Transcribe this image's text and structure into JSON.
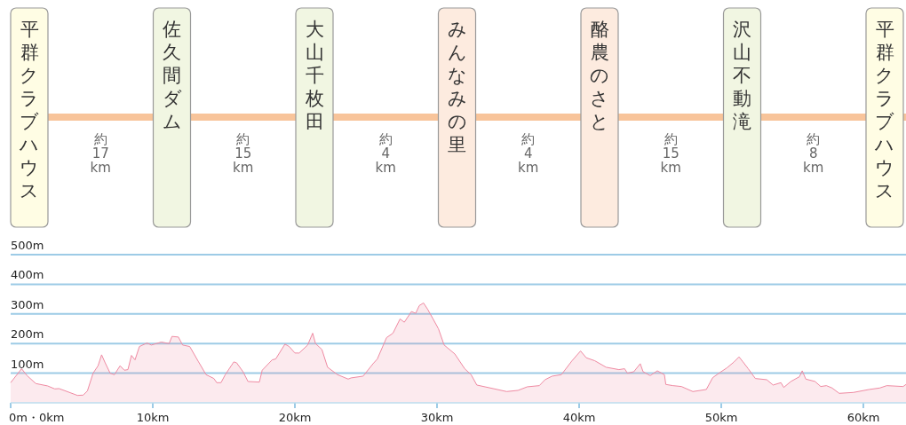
{
  "chart_data": {
    "type": "area",
    "color": "#ef8aa2",
    "annotations": [
      "平群クラブハウス",
      "約17km",
      "佐久間ダム",
      "約15km",
      "大山千枚田",
      "約4km",
      "みんなみの里",
      "約4km",
      "酪農のさと",
      "約15km",
      "沢山不動滝",
      "約8km",
      "平群クラブハウス"
    ],
    "x": [
      0,
      0.77,
      1.15,
      1.77,
      2.6,
      3.1,
      3.4,
      3.75,
      4.7,
      5.1,
      5.4,
      5.8,
      6.15,
      6.4,
      6.65,
      7.0,
      7.3,
      7.7,
      8.0,
      8.25,
      8.5,
      8.75,
      9.06,
      9.6,
      9.9,
      10.6,
      11.15,
      11.35,
      11.8,
      12.1,
      12.6,
      13.2,
      13.75,
      14.3,
      14.5,
      14.8,
      15.1,
      15.7,
      15.9,
      16.35,
      16.7,
      17.5,
      17.7,
      18.4,
      18.65,
      19.3,
      19.6,
      20.0,
      20.3,
      20.9,
      21.25,
      21.45,
      21.9,
      22.3,
      23.0,
      23.75,
      23.95,
      24.8,
      25.5,
      25.8,
      26.45,
      26.9,
      27.4,
      27.7,
      28.2,
      28.5,
      28.75,
      29.05,
      29.35,
      29.7,
      30.1,
      30.5,
      31.25,
      31.95,
      32.4,
      32.8,
      34.9,
      35.7,
      36.35,
      37.2,
      37.6,
      38.1,
      38.75,
      39.5,
      40.1,
      40.5,
      41.1,
      41.9,
      42.8,
      43.2,
      43.4,
      43.85,
      44.3,
      44.5,
      45.0,
      45.5,
      46.0,
      46.1,
      46.6,
      47.2,
      48.0,
      48.95,
      49.4,
      49.9,
      50.4,
      50.9,
      51.25,
      51.5,
      51.9,
      52.4,
      53.2,
      53.65,
      54.2,
      54.4,
      54.9,
      55.5,
      55.7,
      55.95,
      56.6,
      57.0,
      57.4,
      57.8,
      58.3,
      59.3,
      60.4,
      61.15,
      61.65,
      62.8,
      63.0
    ],
    "values": [
      68,
      115,
      92,
      65,
      57,
      47,
      48,
      42,
      25,
      26,
      40,
      100,
      125,
      162,
      135,
      100,
      95,
      125,
      110,
      112,
      160,
      145,
      190,
      202,
      195,
      205,
      200,
      224,
      222,
      195,
      190,
      140,
      95,
      82,
      68,
      68,
      95,
      138,
      135,
      105,
      72,
      70,
      110,
      145,
      148,
      198,
      190,
      168,
      168,
      195,
      235,
      200,
      180,
      120,
      95,
      80,
      84,
      90,
      132,
      148,
      220,
      235,
      283,
      272,
      308,
      302,
      328,
      337,
      315,
      285,
      250,
      195,
      165,
      115,
      95,
      60,
      38,
      42,
      54,
      58,
      78,
      90,
      95,
      142,
      175,
      152,
      142,
      120,
      112,
      115,
      100,
      105,
      132,
      105,
      92,
      108,
      95,
      62,
      58,
      55,
      38,
      45,
      85,
      102,
      118,
      138,
      155,
      140,
      115,
      82,
      78,
      60,
      68,
      52,
      72,
      88,
      108,
      80,
      72,
      55,
      58,
      50,
      32,
      35,
      45,
      50,
      58,
      55,
      62
    ],
    "xlim": [
      0,
      63
    ],
    "ylim": [
      0,
      500
    ],
    "xticks": [
      {
        "value": 0,
        "label": "0m・0km"
      },
      {
        "value": 10,
        "label": "10km"
      },
      {
        "value": 20,
        "label": "20km"
      },
      {
        "value": 30,
        "label": "30km"
      },
      {
        "value": 40,
        "label": "40km"
      },
      {
        "value": 50,
        "label": "50km"
      },
      {
        "value": 60,
        "label": "60km"
      }
    ],
    "yticks": [
      {
        "value": 100,
        "label": "100m"
      },
      {
        "value": 200,
        "label": "200m"
      },
      {
        "value": 300,
        "label": "300m"
      },
      {
        "value": 400,
        "label": "400m"
      },
      {
        "value": 500,
        "label": "500m"
      }
    ],
    "grid": "y"
  }
}
